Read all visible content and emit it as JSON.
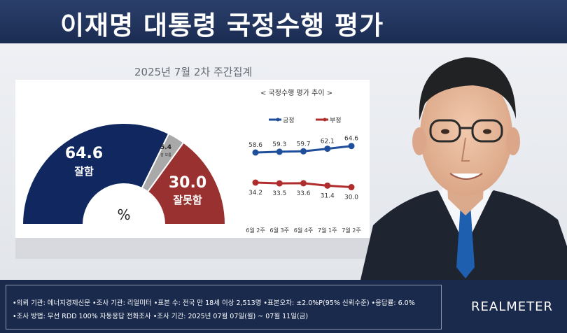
{
  "header": {
    "title": "이재명 대통령 국정수행 평가"
  },
  "subtitle": "2025년 7월 2차 주간집계",
  "gauge": {
    "unit_symbol": "%",
    "positive": {
      "value": "64.6",
      "label": "잘함",
      "color": "#10285f"
    },
    "neutral": {
      "value": "5.4",
      "label": "잘 모름",
      "color": "#a9a9a9"
    },
    "negative": {
      "value": "30.0",
      "label": "잘못함",
      "color": "#9a3131"
    }
  },
  "trend": {
    "title": "< 국정수행 평가 추이 >",
    "legend_positive": "긍정",
    "legend_negative": "부정"
  },
  "chart_data": [
    {
      "type": "pie",
      "categories": [
        "잘함",
        "잘 모름",
        "잘못함"
      ],
      "values": [
        64.6,
        5.4,
        30.0
      ],
      "title": "2025년 7월 2차 주간집계"
    },
    {
      "type": "line",
      "title": "< 국정수행 평가 추이 >",
      "categories": [
        "6월 2주",
        "6월 3주",
        "6월 4주",
        "7월 1주",
        "7월 2주"
      ],
      "series": [
        {
          "name": "긍정",
          "values": [
            58.6,
            59.3,
            59.7,
            62.1,
            64.6
          ],
          "color": "#1f4e9a"
        },
        {
          "name": "부정",
          "values": [
            34.2,
            33.5,
            33.6,
            31.4,
            30.0
          ],
          "color": "#b02d2d"
        }
      ],
      "grid": false,
      "legend": "top"
    }
  ],
  "footer": {
    "line1": "•의뢰 기관: 에너지경제신문  •조사 기관: 리얼미터  •표본 수: 전국 만 18세 이상 2,513명  •표본오차: ±2.0%P(95% 신뢰수준)  •응답률: 6.0%",
    "line2": "•조사 방법: 무선 RDD 100% 자동응답 전화조사  •조사 기간: 2025년 07월 07일(월) ~ 07월 11일(금)",
    "brand": "REALMETER"
  }
}
